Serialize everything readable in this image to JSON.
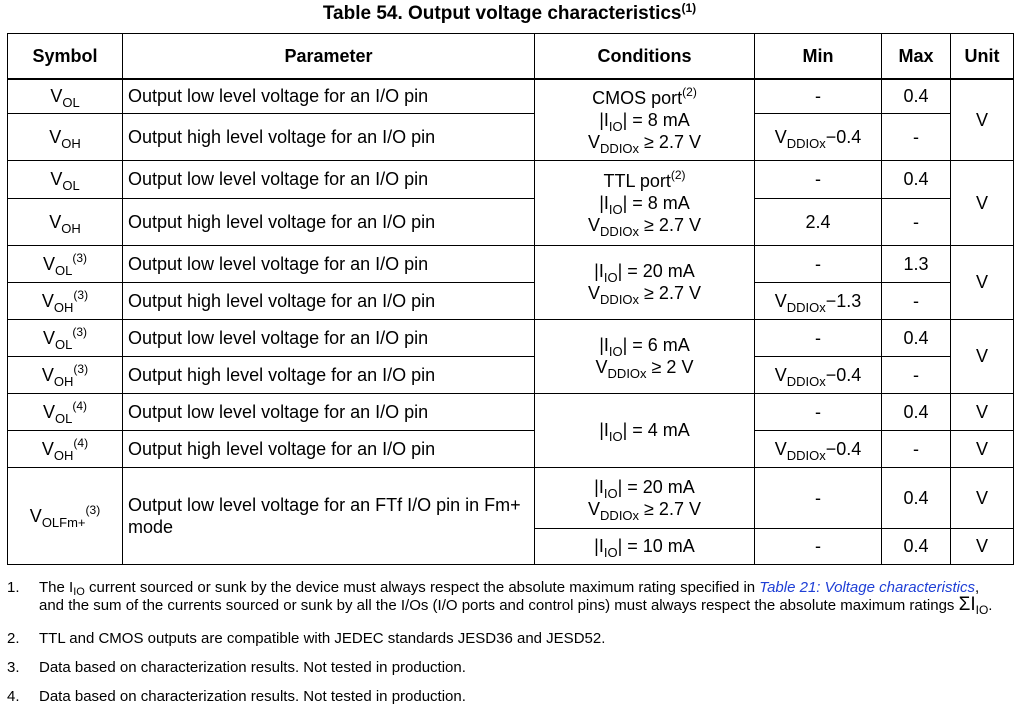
{
  "title": {
    "text": "Table 54. Output voltage characteristics",
    "note_ref": "(1)"
  },
  "headers": {
    "symbol": "Symbol",
    "parameter": "Parameter",
    "conditions": "Conditions",
    "min": "Min",
    "max": "Max",
    "unit": "Unit"
  },
  "sym": {
    "V": "V",
    "OL": "OL",
    "OH": "OH",
    "OLFm": "OLFm+"
  },
  "refs": {
    "r2": "(2)",
    "r3": "(3)",
    "r4": "(4)"
  },
  "param": {
    "low": "Output low level voltage for an I/O pin",
    "high": "Output high level voltage for an I/O pin",
    "ftf": "Output low level voltage for an FTf I/O pin in Fm+ mode"
  },
  "cond": {
    "cmos": "CMOS port",
    "ttl": "TTL port",
    "bar": "|I",
    "io": "IO",
    "eq8": "| = 8 mA",
    "eq20": "| = 20 mA",
    "eq6": "| = 6 mA",
    "eq4": "| = 4 mA",
    "eq10": "| = 10 mA",
    "vddiox": "DDIOx",
    "ge27": " ≥ 2.7 V",
    "ge2": " ≥ 2 V"
  },
  "val": {
    "dash": "-",
    "v04": "0.4",
    "v13": "1.3",
    "v24": "2.4",
    "min04": "−0.4",
    "min13": "−1.3",
    "unit": "V"
  },
  "notes": {
    "n1_num": "1.",
    "n1_a": "The I",
    "n1_io": "IO",
    "n1_b": " current sourced or sunk by the device must always respect the absolute maximum rating specified in ",
    "n1_link": "Table 21: Voltage characteristics",
    "n1_c": ", and the sum of the currents sourced or sunk by all the I/Os (I/O ports and control pins) must always respect the absolute maximum ratings ",
    "n1_sigma": "ΣI",
    "n1_end": ".",
    "n2_num": "2.",
    "n2": "TTL and CMOS outputs are compatible with JEDEC standards JESD36 and JESD52.",
    "n3_num": "3.",
    "n3": "Data based on characterization results. Not tested in production.",
    "n4_num": "4.",
    "n4": "Data based on characterization results. Not tested in production."
  }
}
